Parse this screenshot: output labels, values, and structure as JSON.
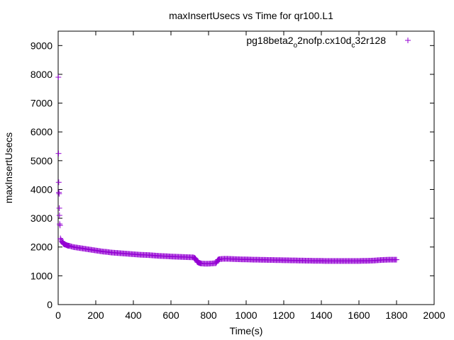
{
  "chart_data": {
    "type": "scatter",
    "title": "maxInsertUsecs vs Time for qr100.L1",
    "xlabel": "Time(s)",
    "ylabel": "maxInsertUsecs",
    "xlim": [
      0,
      2000
    ],
    "ylim": [
      0,
      9500
    ],
    "x_ticks": [
      0,
      200,
      400,
      600,
      800,
      1000,
      1200,
      1400,
      1600,
      1800,
      2000
    ],
    "y_ticks": [
      0,
      1000,
      2000,
      3000,
      4000,
      5000,
      6000,
      7000,
      8000,
      9000
    ],
    "grid": false,
    "legend_position": "top-right",
    "series": [
      {
        "name_parts": {
          "a": "pg18beta2",
          "b": "o",
          "c": "2nofp.cx10d",
          "d": "c",
          "e": "32r128"
        },
        "color": "#9400d3",
        "marker": "plus",
        "points": [
          [
            1,
            7900
          ],
          [
            2,
            5250
          ],
          [
            3,
            4250
          ],
          [
            4,
            3900
          ],
          [
            5,
            3850
          ],
          [
            6,
            3350
          ],
          [
            7,
            3100
          ],
          [
            8,
            2800
          ],
          [
            10,
            2750
          ],
          [
            12,
            2300
          ],
          [
            15,
            2250
          ],
          [
            20,
            2200
          ],
          [
            25,
            2150
          ],
          [
            30,
            2100
          ],
          [
            40,
            2080
          ],
          [
            50,
            2050
          ],
          [
            60,
            2040
          ],
          [
            80,
            2000
          ],
          [
            100,
            1980
          ],
          [
            120,
            1960
          ],
          [
            140,
            1940
          ],
          [
            160,
            1920
          ],
          [
            180,
            1900
          ],
          [
            200,
            1880
          ],
          [
            220,
            1860
          ],
          [
            240,
            1840
          ],
          [
            260,
            1830
          ],
          [
            280,
            1810
          ],
          [
            300,
            1800
          ],
          [
            320,
            1790
          ],
          [
            340,
            1780
          ],
          [
            360,
            1770
          ],
          [
            380,
            1760
          ],
          [
            400,
            1750
          ],
          [
            420,
            1740
          ],
          [
            440,
            1730
          ],
          [
            460,
            1725
          ],
          [
            480,
            1720
          ],
          [
            500,
            1710
          ],
          [
            520,
            1700
          ],
          [
            540,
            1690
          ],
          [
            560,
            1685
          ],
          [
            580,
            1680
          ],
          [
            600,
            1670
          ],
          [
            620,
            1665
          ],
          [
            640,
            1660
          ],
          [
            660,
            1655
          ],
          [
            680,
            1650
          ],
          [
            700,
            1645
          ],
          [
            720,
            1640
          ],
          [
            730,
            1600
          ],
          [
            740,
            1480
          ],
          [
            750,
            1450
          ],
          [
            760,
            1430
          ],
          [
            780,
            1420
          ],
          [
            800,
            1420
          ],
          [
            820,
            1430
          ],
          [
            840,
            1440
          ],
          [
            850,
            1560
          ],
          [
            860,
            1580
          ],
          [
            880,
            1590
          ],
          [
            900,
            1590
          ],
          [
            920,
            1585
          ],
          [
            940,
            1580
          ],
          [
            960,
            1575
          ],
          [
            980,
            1570
          ],
          [
            1000,
            1570
          ],
          [
            1020,
            1565
          ],
          [
            1040,
            1560
          ],
          [
            1060,
            1560
          ],
          [
            1080,
            1555
          ],
          [
            1100,
            1555
          ],
          [
            1120,
            1550
          ],
          [
            1140,
            1550
          ],
          [
            1160,
            1545
          ],
          [
            1180,
            1545
          ],
          [
            1200,
            1540
          ],
          [
            1220,
            1540
          ],
          [
            1240,
            1535
          ],
          [
            1260,
            1535
          ],
          [
            1280,
            1530
          ],
          [
            1300,
            1530
          ],
          [
            1320,
            1525
          ],
          [
            1340,
            1525
          ],
          [
            1360,
            1520
          ],
          [
            1380,
            1520
          ],
          [
            1400,
            1520
          ],
          [
            1420,
            1515
          ],
          [
            1440,
            1515
          ],
          [
            1460,
            1515
          ],
          [
            1480,
            1515
          ],
          [
            1500,
            1515
          ],
          [
            1520,
            1515
          ],
          [
            1540,
            1515
          ],
          [
            1560,
            1515
          ],
          [
            1580,
            1515
          ],
          [
            1600,
            1515
          ],
          [
            1620,
            1520
          ],
          [
            1640,
            1520
          ],
          [
            1660,
            1525
          ],
          [
            1680,
            1530
          ],
          [
            1700,
            1540
          ],
          [
            1720,
            1550
          ],
          [
            1740,
            1555
          ],
          [
            1760,
            1560
          ],
          [
            1780,
            1560
          ],
          [
            1800,
            1560
          ]
        ]
      }
    ]
  }
}
